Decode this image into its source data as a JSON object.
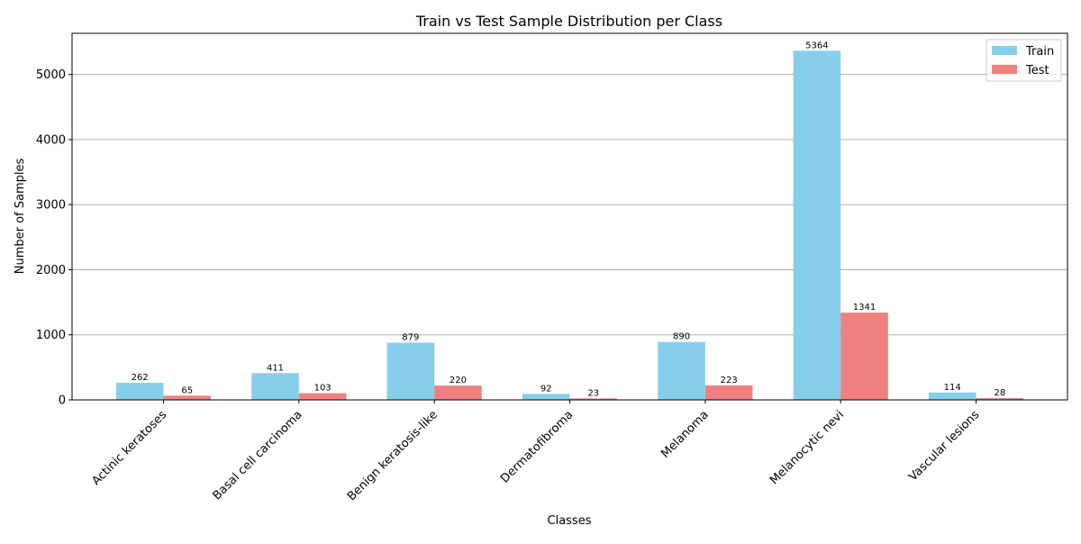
{
  "chart_data": {
    "type": "bar",
    "title": "Train vs Test Sample Distribution per Class",
    "xlabel": "Classes",
    "ylabel": "Number of Samples",
    "categories": [
      "Actinic keratoses",
      "Basal cell carcinoma",
      "Benign keratosis-like",
      "Dermatofibroma",
      "Melanoma",
      "Melanocytic nevi",
      "Vascular lesions"
    ],
    "series": [
      {
        "name": "Train",
        "color": "#87ceeb",
        "values": [
          262,
          411,
          879,
          92,
          890,
          5364,
          114
        ]
      },
      {
        "name": "Test",
        "color": "#f08080",
        "values": [
          65,
          103,
          220,
          23,
          223,
          1341,
          28
        ]
      }
    ],
    "ylim": [
      0,
      5632
    ],
    "yticks": [
      0,
      1000,
      2000,
      3000,
      4000,
      5000
    ],
    "grid": "y",
    "legend": "top-right",
    "xtick_rotation": 45
  }
}
